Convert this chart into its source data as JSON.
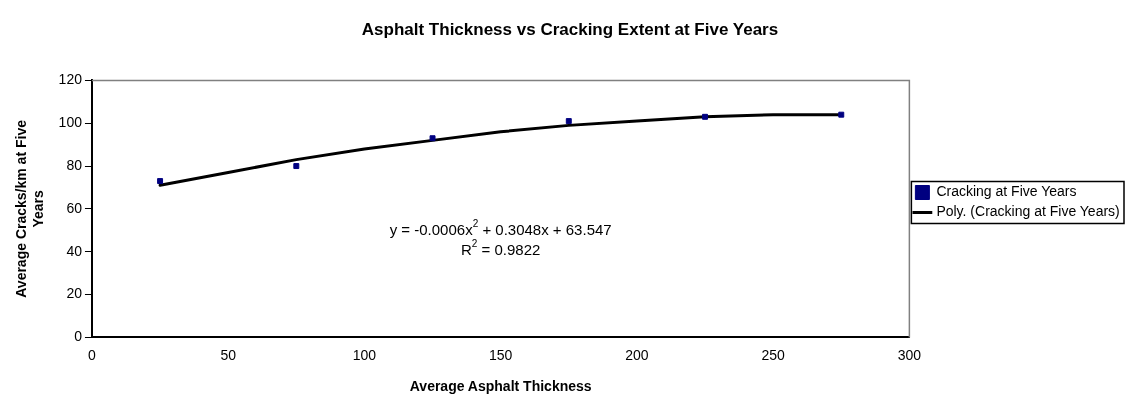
{
  "chart_data": {
    "type": "scatter",
    "title": "Asphalt Thickness vs Cracking Extent at Five Years",
    "xlabel": "Average Asphalt Thickness",
    "ylabel": "Average Cracks/km at Five Years",
    "series": [
      {
        "name": "Cracking at Five Years",
        "type": "scatter",
        "marker": "square",
        "color": "#000080",
        "x": [
          25,
          75,
          125,
          175,
          225,
          275
        ],
        "values": [
          73,
          80,
          93,
          101,
          103,
          104
        ]
      },
      {
        "name": "Poly. (Cracking at Five Years)",
        "type": "line",
        "marker": "none",
        "color": "#000000",
        "x": [
          25,
          50,
          75,
          100,
          125,
          150,
          175,
          200,
          225,
          250,
          275
        ],
        "values": [
          71,
          77,
          83,
          88,
          92,
          96,
          99,
          101,
          103,
          104,
          104
        ]
      }
    ],
    "xlim": [
      0,
      300
    ],
    "xticks": [
      0,
      50,
      100,
      150,
      200,
      250,
      300
    ],
    "ylim": [
      0,
      120
    ],
    "yticks": [
      0,
      20,
      40,
      60,
      80,
      100,
      120
    ],
    "grid": false,
    "legend": "right",
    "annotations": [
      "y = -0.0006x$^{2}$ + 0.3048x + 63.547",
      "R$^{2}$ = 0.9822"
    ]
  }
}
